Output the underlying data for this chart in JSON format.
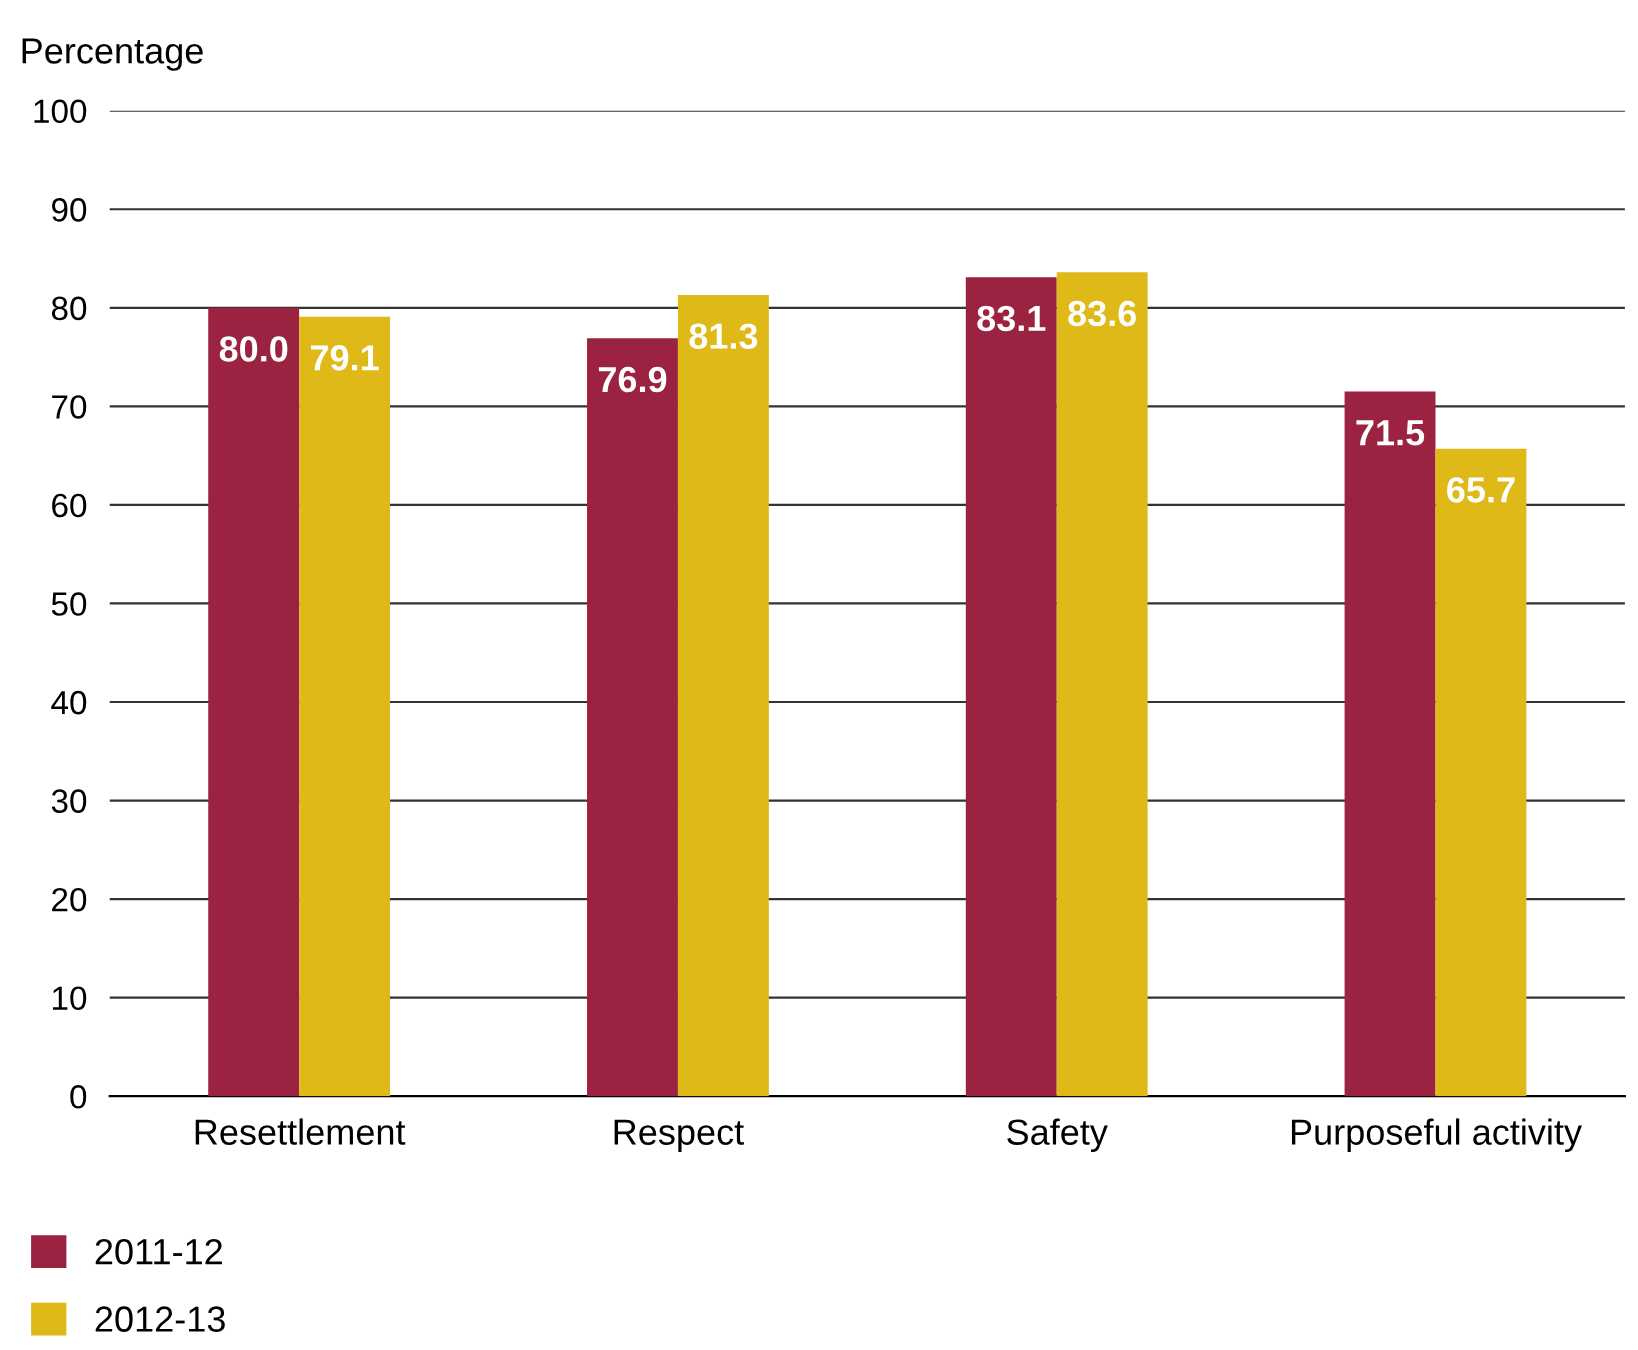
{
  "chart_data": {
    "type": "bar",
    "ylabel": "Percentage",
    "categories": [
      "Resettlement",
      "Respect",
      "Safety",
      "Purposeful activity"
    ],
    "series": [
      {
        "name": "2011-12",
        "color": "#9b2240",
        "values": [
          80.0,
          76.9,
          83.1,
          71.5
        ],
        "value_labels": [
          "80.0",
          "76.9",
          "83.1",
          "71.5"
        ]
      },
      {
        "name": "2012-13",
        "color": "#dfb918",
        "values": [
          79.1,
          81.3,
          83.6,
          65.7
        ],
        "value_labels": [
          "79.1",
          "81.3",
          "83.6",
          "65.7"
        ]
      }
    ],
    "ylim": [
      0,
      100
    ],
    "yticks": [
      0,
      10,
      20,
      30,
      40,
      50,
      60,
      70,
      80,
      90,
      100
    ],
    "grid": "y",
    "legend": "bottom left"
  }
}
